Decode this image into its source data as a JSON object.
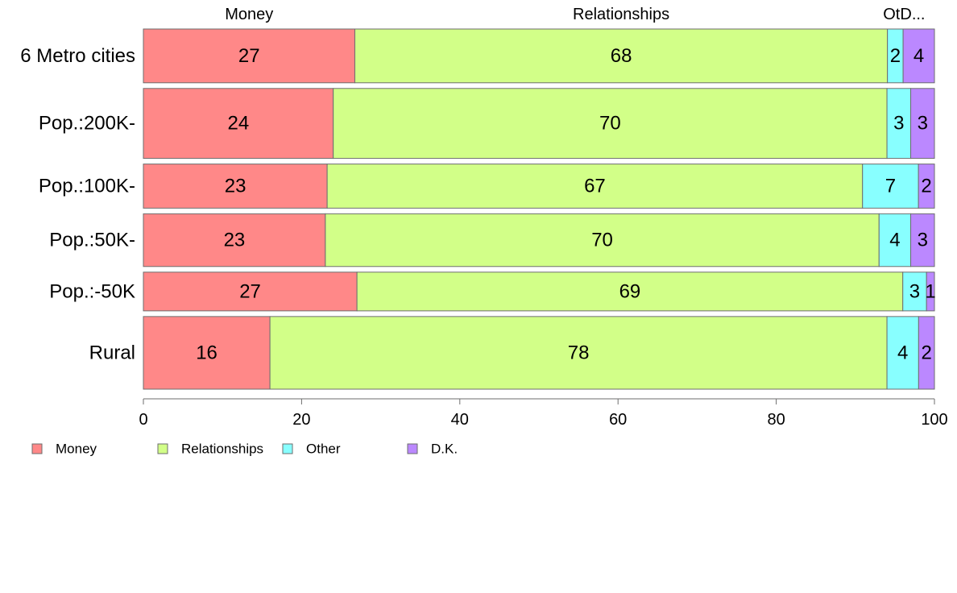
{
  "chart_data": {
    "type": "bar",
    "orientation": "horizontal",
    "stacked": true,
    "normalized_to": 100,
    "categories": [
      "6 Metro cities",
      "Pop.:200K-",
      "Pop.:100K-",
      "Pop.:50K-",
      "Pop.:-50K",
      "Rural"
    ],
    "category_weights": [
      1.0,
      1.3,
      0.82,
      0.98,
      0.72,
      1.35
    ],
    "series": [
      {
        "name": "Money",
        "color": "#ff8888",
        "values": [
          27,
          24,
          23,
          23,
          27,
          16
        ]
      },
      {
        "name": "Relationships",
        "color": "#d2ff88",
        "values": [
          68,
          70,
          67,
          70,
          69,
          78
        ]
      },
      {
        "name": "Other",
        "color": "#88ffff",
        "values": [
          2,
          3,
          7,
          4,
          3,
          4
        ]
      },
      {
        "name": "D.K.",
        "color": "#bb88ff",
        "values": [
          4,
          3,
          2,
          3,
          1,
          2
        ]
      }
    ],
    "top_labels": [
      "Money",
      "Relationships",
      "Ot",
      "D..."
    ],
    "xlim": [
      0,
      100
    ],
    "xticks": [
      0,
      20,
      40,
      60,
      80,
      100
    ],
    "legend": [
      "Money",
      "Relationships",
      "Other",
      "D.K."
    ],
    "legend_position": "bottom-left",
    "grid": false
  }
}
